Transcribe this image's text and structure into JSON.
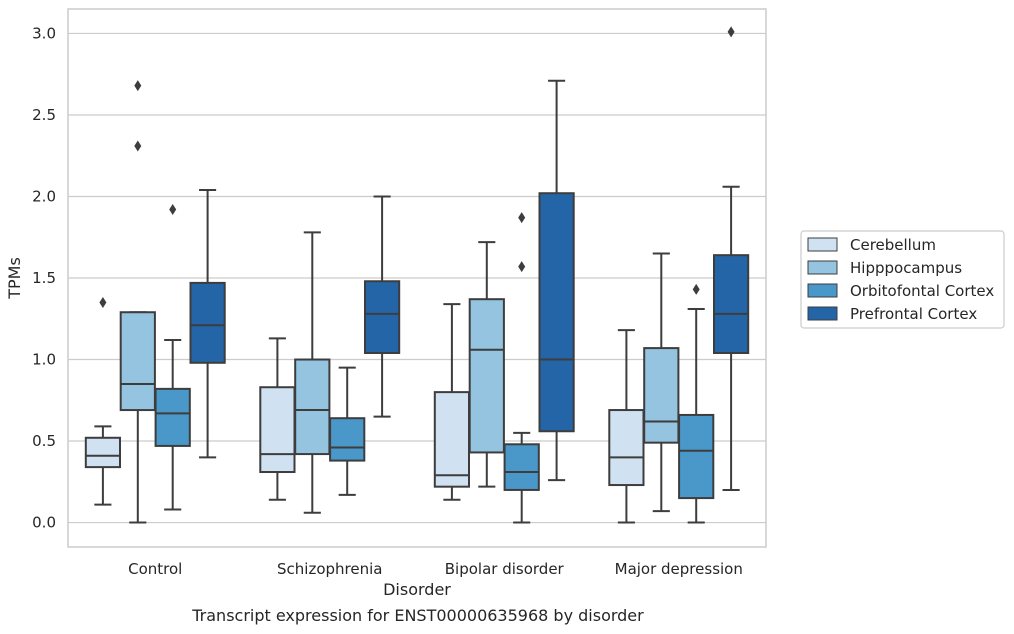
{
  "caption": "Transcript expression for ENST00000635968 by disorder",
  "chart_data": {
    "type": "box",
    "xlabel": "Disorder",
    "ylabel": "TPMs",
    "ylim": [
      -0.15,
      3.15
    ],
    "yticks": [
      0.0,
      0.5,
      1.0,
      1.5,
      2.0,
      2.5,
      3.0
    ],
    "ytick_labels": [
      "0.0",
      "0.5",
      "1.0",
      "1.5",
      "2.0",
      "2.5",
      "3.0"
    ],
    "grid": "horizontal",
    "legend_position": "right",
    "categories": [
      "Control",
      "Schizophrenia",
      "Bipolar disorder",
      "Major depression"
    ],
    "series": [
      {
        "name": "Cerebellum",
        "color": "#d0e1f2",
        "boxes": [
          {
            "whislo": 0.11,
            "q1": 0.34,
            "med": 0.41,
            "q3": 0.52,
            "whishi": 0.59,
            "fliers": [
              1.35
            ]
          },
          {
            "whislo": 0.14,
            "q1": 0.31,
            "med": 0.42,
            "q3": 0.83,
            "whishi": 1.13,
            "fliers": []
          },
          {
            "whislo": 0.14,
            "q1": 0.22,
            "med": 0.29,
            "q3": 0.8,
            "whishi": 1.34,
            "fliers": []
          },
          {
            "whislo": 0.0,
            "q1": 0.23,
            "med": 0.4,
            "q3": 0.69,
            "whishi": 1.18,
            "fliers": []
          }
        ]
      },
      {
        "name": "Hipppocampus",
        "color": "#94c4df",
        "boxes": [
          {
            "whislo": 0.0,
            "q1": 0.69,
            "med": 0.85,
            "q3": 1.29,
            "whishi": 1.29,
            "fliers": [
              2.68,
              2.31
            ]
          },
          {
            "whislo": 0.06,
            "q1": 0.42,
            "med": 0.69,
            "q3": 1.0,
            "whishi": 1.78,
            "fliers": []
          },
          {
            "whislo": 0.22,
            "q1": 0.43,
            "med": 1.06,
            "q3": 1.37,
            "whishi": 1.72,
            "fliers": []
          },
          {
            "whislo": 0.07,
            "q1": 0.49,
            "med": 0.62,
            "q3": 1.07,
            "whishi": 1.65,
            "fliers": []
          }
        ]
      },
      {
        "name": "Orbitofontal Cortex",
        "color": "#4a98c9",
        "boxes": [
          {
            "whislo": 0.08,
            "q1": 0.47,
            "med": 0.67,
            "q3": 0.82,
            "whishi": 1.12,
            "fliers": [
              1.92
            ]
          },
          {
            "whislo": 0.17,
            "q1": 0.38,
            "med": 0.46,
            "q3": 0.64,
            "whishi": 0.95,
            "fliers": []
          },
          {
            "whislo": 0.0,
            "q1": 0.2,
            "med": 0.31,
            "q3": 0.48,
            "whishi": 0.55,
            "fliers": [
              1.87,
              1.57
            ]
          },
          {
            "whislo": 0.0,
            "q1": 0.15,
            "med": 0.44,
            "q3": 0.66,
            "whishi": 1.31,
            "fliers": [
              1.43
            ]
          }
        ]
      },
      {
        "name": "Prefrontal Cortex",
        "color": "#2465a8",
        "boxes": [
          {
            "whislo": 0.4,
            "q1": 0.98,
            "med": 1.21,
            "q3": 1.47,
            "whishi": 2.04,
            "fliers": []
          },
          {
            "whislo": 0.65,
            "q1": 1.04,
            "med": 1.28,
            "q3": 1.48,
            "whishi": 2.0,
            "fliers": []
          },
          {
            "whislo": 0.26,
            "q1": 0.56,
            "med": 1.0,
            "q3": 2.02,
            "whishi": 2.71,
            "fliers": []
          },
          {
            "whislo": 0.2,
            "q1": 1.04,
            "med": 1.28,
            "q3": 1.64,
            "whishi": 2.06,
            "fliers": [
              3.01
            ]
          }
        ]
      }
    ]
  }
}
